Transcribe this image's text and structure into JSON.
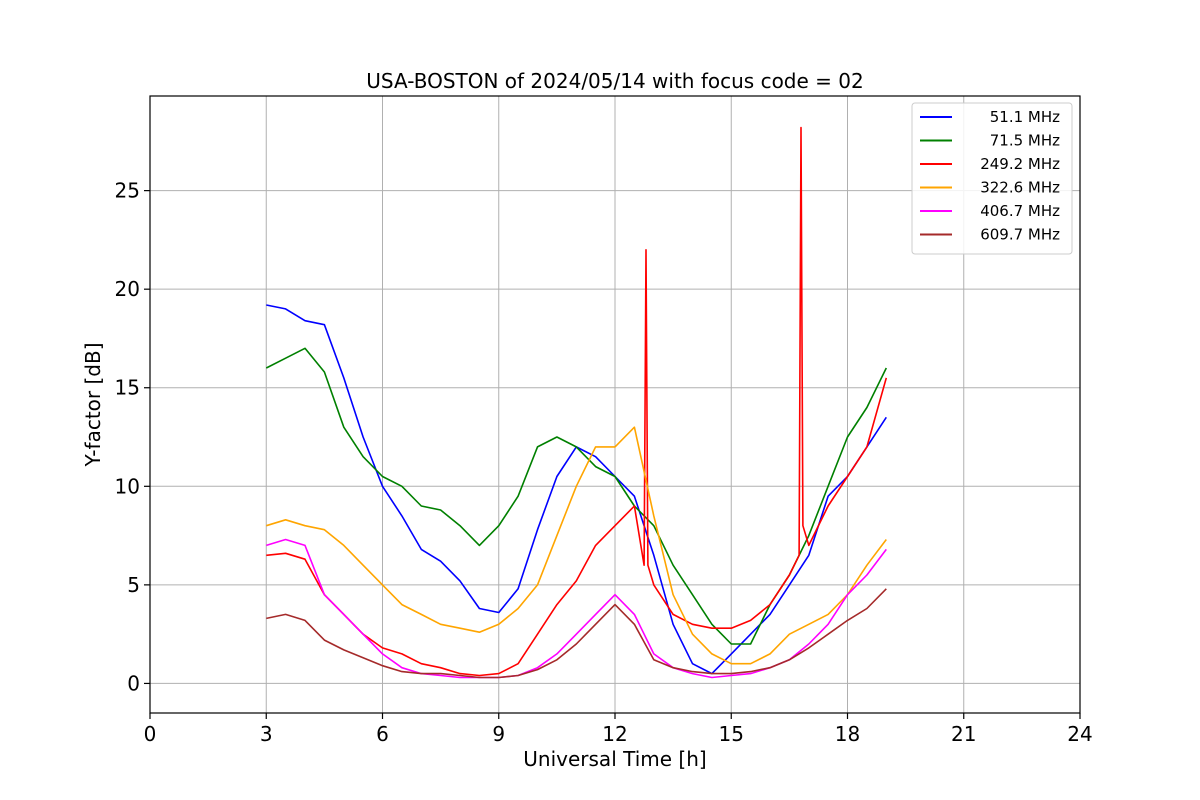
{
  "chart_data": {
    "type": "line",
    "title": "USA-BOSTON of 2024/05/14 with focus code = 02",
    "xlabel": "Universal Time [h]",
    "ylabel": "Y-factor [dB]",
    "xlim": [
      0,
      24
    ],
    "ylim": [
      -1.5,
      29.8
    ],
    "xticks": [
      0,
      3,
      6,
      9,
      12,
      15,
      18,
      21,
      24
    ],
    "yticks": [
      0,
      5,
      10,
      15,
      20,
      25
    ],
    "grid": true,
    "legend_position": "top-right",
    "series": [
      {
        "name": " 51.1 MHz",
        "color": "#0000ff",
        "x": [
          3.0,
          3.5,
          4.0,
          4.5,
          5.0,
          5.5,
          6.0,
          6.5,
          7.0,
          7.5,
          8.0,
          8.5,
          9.0,
          9.5,
          10.0,
          10.5,
          11.0,
          11.5,
          12.0,
          12.5,
          13.0,
          13.5,
          14.0,
          14.5,
          15.0,
          15.5,
          16.0,
          16.5,
          17.0,
          17.5,
          18.0,
          18.5,
          19.0
        ],
        "y": [
          19.2,
          19.0,
          18.4,
          18.2,
          15.5,
          12.5,
          10.0,
          8.5,
          6.8,
          6.2,
          5.2,
          3.8,
          3.6,
          4.8,
          7.8,
          10.5,
          12.0,
          11.5,
          10.5,
          9.5,
          6.5,
          3.0,
          1.0,
          0.5,
          1.5,
          2.5,
          3.5,
          5.0,
          6.5,
          9.5,
          10.5,
          12.0,
          13.5
        ]
      },
      {
        "name": " 71.5 MHz",
        "color": "#008000",
        "x": [
          3.0,
          3.5,
          4.0,
          4.5,
          5.0,
          5.5,
          6.0,
          6.5,
          7.0,
          7.5,
          8.0,
          8.5,
          9.0,
          9.5,
          10.0,
          10.5,
          11.0,
          11.5,
          12.0,
          12.5,
          13.0,
          13.5,
          14.0,
          14.5,
          15.0,
          15.5,
          16.0,
          16.5,
          17.0,
          17.5,
          18.0,
          18.5,
          19.0
        ],
        "y": [
          16.0,
          16.5,
          17.0,
          15.8,
          13.0,
          11.5,
          10.5,
          10.0,
          9.0,
          8.8,
          8.0,
          7.0,
          8.0,
          9.5,
          12.0,
          12.5,
          12.0,
          11.0,
          10.5,
          9.0,
          8.0,
          6.0,
          4.5,
          3.0,
          2.0,
          2.0,
          4.0,
          5.5,
          7.5,
          10.0,
          12.5,
          14.0,
          16.0
        ]
      },
      {
        "name": "249.2 MHz",
        "color": "#ff0000",
        "x": [
          3.0,
          3.5,
          4.0,
          4.5,
          5.0,
          5.5,
          6.0,
          6.5,
          7.0,
          7.5,
          8.0,
          8.5,
          9.0,
          9.5,
          10.0,
          10.5,
          11.0,
          11.5,
          12.0,
          12.5,
          12.75,
          12.8,
          12.85,
          13.0,
          13.5,
          14.0,
          14.5,
          15.0,
          15.5,
          16.0,
          16.5,
          16.75,
          16.8,
          16.85,
          17.0,
          17.5,
          18.0,
          18.5,
          19.0
        ],
        "y": [
          6.5,
          6.6,
          6.3,
          4.5,
          3.5,
          2.5,
          1.8,
          1.5,
          1.0,
          0.8,
          0.5,
          0.4,
          0.5,
          1.0,
          2.5,
          4.0,
          5.2,
          7.0,
          8.0,
          9.0,
          6.0,
          22.0,
          6.0,
          5.0,
          3.5,
          3.0,
          2.8,
          2.8,
          3.2,
          4.0,
          5.5,
          6.5,
          28.2,
          8.0,
          7.0,
          9.0,
          10.5,
          12.0,
          15.5
        ]
      },
      {
        "name": "322.6 MHz",
        "color": "#ffa500",
        "x": [
          3.0,
          3.5,
          4.0,
          4.5,
          5.0,
          5.5,
          6.0,
          6.5,
          7.0,
          7.5,
          8.0,
          8.5,
          9.0,
          9.5,
          10.0,
          10.5,
          11.0,
          11.5,
          12.0,
          12.5,
          13.0,
          13.5,
          14.0,
          14.5,
          15.0,
          15.5,
          16.0,
          16.5,
          17.0,
          17.5,
          18.0,
          18.5,
          19.0
        ],
        "y": [
          8.0,
          8.3,
          8.0,
          7.8,
          7.0,
          6.0,
          5.0,
          4.0,
          3.5,
          3.0,
          2.8,
          2.6,
          3.0,
          3.8,
          5.0,
          7.5,
          10.0,
          12.0,
          12.0,
          13.0,
          8.5,
          4.5,
          2.5,
          1.5,
          1.0,
          1.0,
          1.5,
          2.5,
          3.0,
          3.5,
          4.5,
          6.0,
          7.3
        ]
      },
      {
        "name": "406.7 MHz",
        "color": "#ff00ff",
        "x": [
          3.0,
          3.5,
          4.0,
          4.5,
          5.0,
          5.5,
          6.0,
          6.5,
          7.0,
          7.5,
          8.0,
          8.5,
          9.0,
          9.5,
          10.0,
          10.5,
          11.0,
          11.5,
          12.0,
          12.5,
          13.0,
          13.5,
          14.0,
          14.5,
          15.0,
          15.5,
          16.0,
          16.5,
          17.0,
          17.5,
          18.0,
          18.5,
          19.0
        ],
        "y": [
          7.0,
          7.3,
          7.0,
          4.5,
          3.5,
          2.5,
          1.5,
          0.8,
          0.5,
          0.4,
          0.3,
          0.3,
          0.3,
          0.4,
          0.8,
          1.5,
          2.5,
          3.5,
          4.5,
          3.5,
          1.5,
          0.8,
          0.5,
          0.3,
          0.4,
          0.5,
          0.8,
          1.2,
          2.0,
          3.0,
          4.5,
          5.5,
          6.8
        ]
      },
      {
        "name": "609.7 MHz",
        "color": "#a52a2a",
        "x": [
          3.0,
          3.5,
          4.0,
          4.5,
          5.0,
          5.5,
          6.0,
          6.5,
          7.0,
          7.5,
          8.0,
          8.5,
          9.0,
          9.5,
          10.0,
          10.5,
          11.0,
          11.5,
          12.0,
          12.5,
          13.0,
          13.5,
          14.0,
          14.5,
          15.0,
          15.5,
          16.0,
          16.5,
          17.0,
          17.5,
          18.0,
          18.5,
          19.0
        ],
        "y": [
          3.3,
          3.5,
          3.2,
          2.2,
          1.7,
          1.3,
          0.9,
          0.6,
          0.5,
          0.5,
          0.4,
          0.3,
          0.3,
          0.4,
          0.7,
          1.2,
          2.0,
          3.0,
          4.0,
          3.0,
          1.2,
          0.8,
          0.6,
          0.5,
          0.5,
          0.6,
          0.8,
          1.2,
          1.8,
          2.5,
          3.2,
          3.8,
          4.8
        ]
      }
    ]
  }
}
